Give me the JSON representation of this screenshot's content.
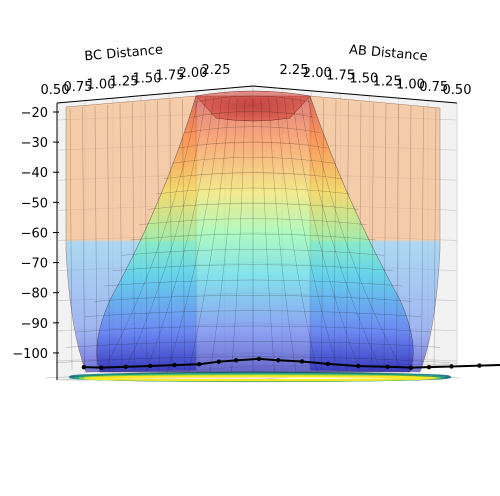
{
  "chart_data": {
    "type": "surface3d",
    "title": "",
    "xlabel": "AB Distance",
    "ylabel": "BC Distance",
    "zlabel": "",
    "xlim": [
      0.5,
      2.25
    ],
    "ylim": [
      0.5,
      2.25
    ],
    "zlim": [
      -105,
      -20
    ],
    "x_ticks": [
      "0.50",
      "0.75",
      "1.00",
      "1.25",
      "1.50",
      "1.75",
      "2.00",
      "2.25"
    ],
    "y_ticks": [
      "0.50",
      "0.75",
      "1.00",
      "1.25",
      "1.50",
      "1.75",
      "2.00",
      "2.25"
    ],
    "z_ticks": [
      "−20",
      "−30",
      "−40",
      "−50",
      "−60",
      "−70",
      "−80",
      "−90",
      "−100"
    ],
    "z_values": [
      -20,
      -30,
      -40,
      -50,
      -60,
      -70,
      -80,
      -90,
      -100
    ],
    "colormap": "jet",
    "surface_alpha": 0.4,
    "grid": true,
    "contour_colormap": "viridis",
    "trajectory": {
      "color": "#000000",
      "marker": "dot",
      "points": [
        {
          "x": 2.25,
          "y": 0.74,
          "z": -103
        },
        {
          "x": 2.1,
          "y": 0.74,
          "z": -103
        },
        {
          "x": 1.9,
          "y": 0.75,
          "z": -102.5
        },
        {
          "x": 1.7,
          "y": 0.76,
          "z": -102
        },
        {
          "x": 1.5,
          "y": 0.77,
          "z": -101.5
        },
        {
          "x": 1.3,
          "y": 0.78,
          "z": -101
        },
        {
          "x": 1.15,
          "y": 0.8,
          "z": -100
        },
        {
          "x": 1.05,
          "y": 0.85,
          "z": -99.5
        },
        {
          "x": 0.95,
          "y": 0.95,
          "z": -99
        },
        {
          "x": 0.88,
          "y": 1.05,
          "z": -99.5
        },
        {
          "x": 0.82,
          "y": 1.2,
          "z": -100
        },
        {
          "x": 0.79,
          "y": 1.4,
          "z": -101
        },
        {
          "x": 0.77,
          "y": 1.65,
          "z": -102
        },
        {
          "x": 0.76,
          "y": 1.9,
          "z": -102.5
        },
        {
          "x": 0.75,
          "y": 2.1,
          "z": -103
        },
        {
          "x": 0.74,
          "y": 2.25,
          "z": -103
        },
        {
          "x": 0.74,
          "y": 2.45,
          "z": -103
        },
        {
          "x": 0.74,
          "y": 2.7,
          "z": -103
        },
        {
          "x": 0.74,
          "y": 2.95,
          "z": -103
        }
      ]
    }
  }
}
